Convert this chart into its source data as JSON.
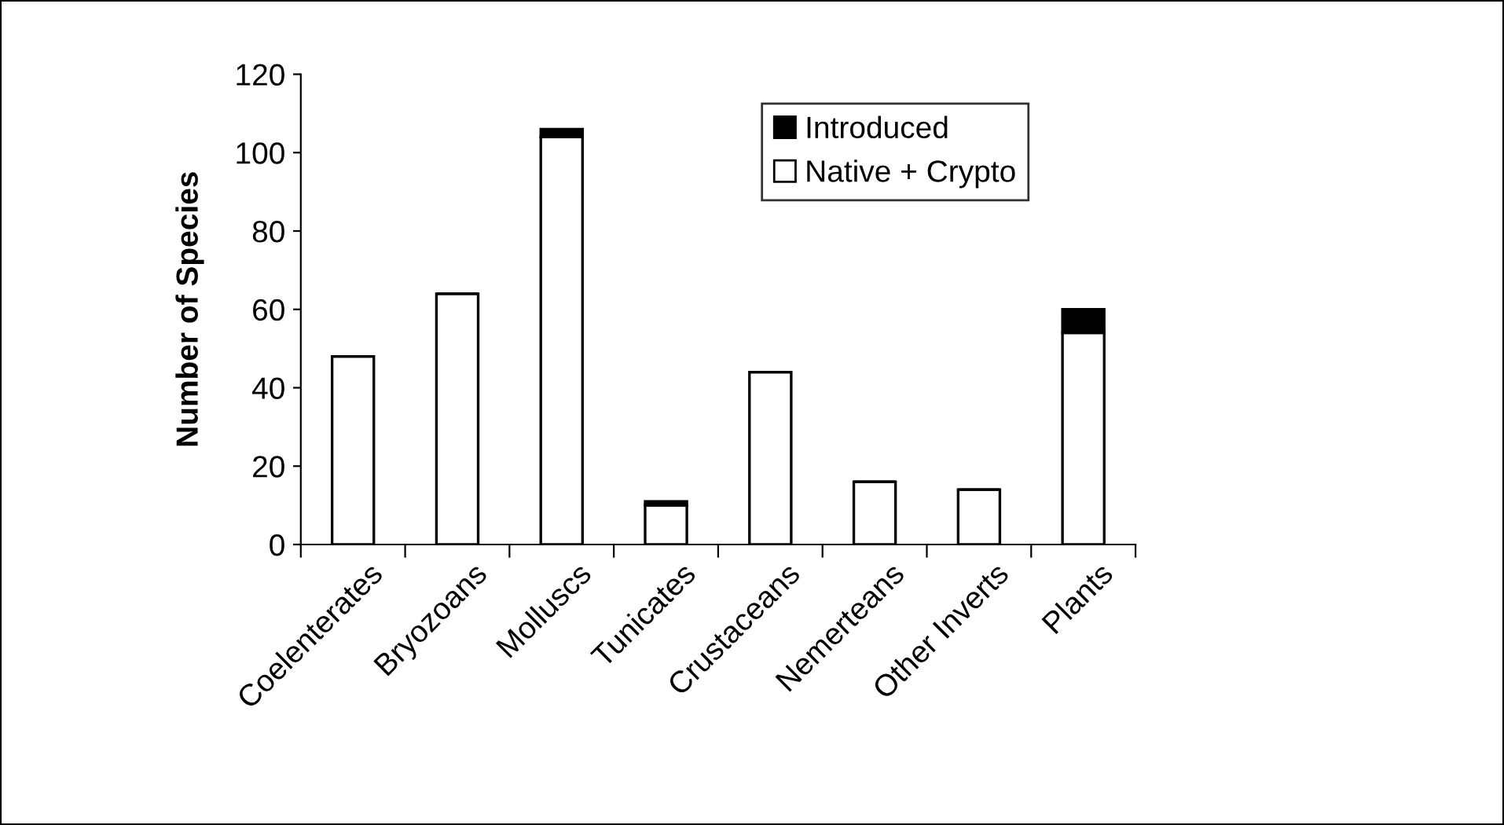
{
  "chart_data": {
    "type": "bar",
    "ylabel": "Number of Species",
    "stacked": true,
    "categories": [
      "Coelenterates",
      "Bryozoans",
      "Molluscs",
      "Tunicates",
      "Crustaceans",
      "Nemerteans",
      "Other Inverts",
      "Plants"
    ],
    "series": [
      {
        "name": "Native + Crypto",
        "color": "#ffffff",
        "values": [
          48,
          64,
          104,
          10,
          44,
          16,
          14,
          54
        ]
      },
      {
        "name": "Introduced",
        "color": "#000000",
        "values": [
          0,
          0,
          2,
          1,
          0,
          0,
          0,
          6
        ]
      }
    ],
    "ylim": [
      0,
      120
    ],
    "yticks": [
      0,
      20,
      40,
      60,
      80,
      100,
      120
    ],
    "grid": false,
    "legend": "top right"
  }
}
